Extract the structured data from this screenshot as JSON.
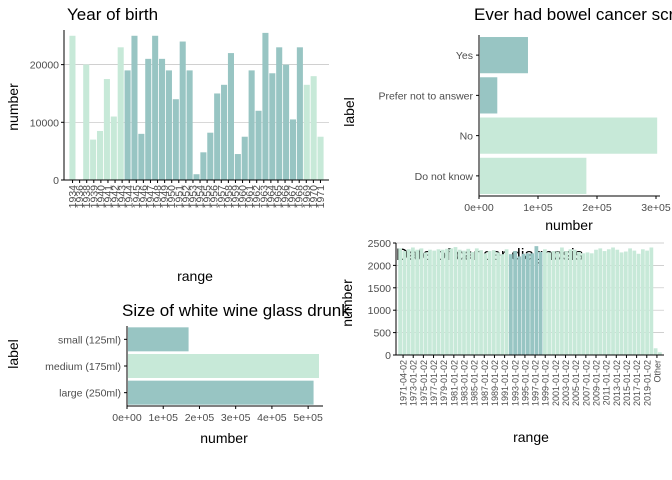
{
  "colors": {
    "dark": "#98c5c3",
    "light": "#c7e9d8",
    "axis": "#000000",
    "grid": "#c0c0c0"
  },
  "chart_data": [
    {
      "id": "year",
      "type": "bar",
      "title": "Year of birth",
      "xlabel": "range",
      "ylabel": "number",
      "ylim": [
        0,
        26000
      ],
      "yticks": [
        0,
        10000,
        20000
      ],
      "grid": "horizontal",
      "x_tick_labels": [
        "1934",
        "1936",
        "1938",
        "1939",
        "1940",
        "1941",
        "1942",
        "1943",
        "1944",
        "1945",
        "1946",
        "1947",
        "1948",
        "1949",
        "1950",
        "1951",
        "1952",
        "1953",
        "1954",
        "1955",
        "1956",
        "1957",
        "1958",
        "1959",
        "1960",
        "1961",
        "1962",
        "1963",
        "1964",
        "1965",
        "1966",
        "1967",
        "1968",
        "1969",
        "1970",
        "1971"
      ],
      "bars": [
        {
          "v": 25000,
          "c": "light"
        },
        {
          "v": 0,
          "c": "light"
        },
        {
          "v": 20000,
          "c": "light"
        },
        {
          "v": 7000,
          "c": "light"
        },
        {
          "v": 8500,
          "c": "light"
        },
        {
          "v": 17500,
          "c": "light"
        },
        {
          "v": 11000,
          "c": "light"
        },
        {
          "v": 23000,
          "c": "light"
        },
        {
          "v": 19000,
          "c": "dark"
        },
        {
          "v": 25000,
          "c": "dark"
        },
        {
          "v": 8000,
          "c": "dark"
        },
        {
          "v": 21000,
          "c": "dark"
        },
        {
          "v": 25000,
          "c": "dark"
        },
        {
          "v": 21000,
          "c": "dark"
        },
        {
          "v": 19000,
          "c": "dark"
        },
        {
          "v": 14000,
          "c": "dark"
        },
        {
          "v": 24000,
          "c": "dark"
        },
        {
          "v": 19000,
          "c": "dark"
        },
        {
          "v": 1000,
          "c": "dark"
        },
        {
          "v": 4800,
          "c": "dark"
        },
        {
          "v": 8200,
          "c": "dark"
        },
        {
          "v": 15000,
          "c": "dark"
        },
        {
          "v": 16500,
          "c": "dark"
        },
        {
          "v": 22000,
          "c": "dark"
        },
        {
          "v": 4500,
          "c": "dark"
        },
        {
          "v": 7500,
          "c": "dark"
        },
        {
          "v": 19000,
          "c": "dark"
        },
        {
          "v": 12000,
          "c": "dark"
        },
        {
          "v": 25500,
          "c": "dark"
        },
        {
          "v": 18500,
          "c": "dark"
        },
        {
          "v": 23000,
          "c": "dark"
        },
        {
          "v": 20000,
          "c": "dark"
        },
        {
          "v": 10500,
          "c": "dark"
        },
        {
          "v": 23000,
          "c": "dark"
        },
        {
          "v": 16500,
          "c": "light"
        },
        {
          "v": 18000,
          "c": "light"
        },
        {
          "v": 7500,
          "c": "light"
        }
      ]
    },
    {
      "id": "bowel",
      "type": "bar",
      "orientation": "horizontal",
      "title": "Ever had bowel cancer screening",
      "xlabel": "number",
      "ylabel": "label",
      "xlim": [
        0,
        300000
      ],
      "xticks": [
        0,
        100000,
        200000,
        300000
      ],
      "xtick_labels": [
        "0e+00",
        "1e+05",
        "2e+05",
        "3e+05"
      ],
      "categories": [
        "Yes",
        "Prefer not to answer",
        "No",
        "Do not know"
      ],
      "values": [
        83000,
        31000,
        302000,
        182000
      ],
      "bar_colors": [
        "dark",
        "dark",
        "light",
        "light"
      ]
    },
    {
      "id": "wine",
      "type": "bar",
      "orientation": "horizontal",
      "title": "Size of white wine glass drunk",
      "xlabel": "number",
      "ylabel": "label",
      "xlim": [
        0,
        530000
      ],
      "xticks": [
        0,
        100000,
        200000,
        300000,
        400000,
        500000
      ],
      "xtick_labels": [
        "0e+00",
        "1e+05",
        "2e+05",
        "3e+05",
        "4e+05",
        "5e+05"
      ],
      "categories": [
        "small (125ml)",
        "medium (175ml)",
        "large (250ml)"
      ],
      "values": [
        170000,
        530000,
        515000
      ],
      "bar_colors": [
        "dark",
        "light",
        "dark"
      ]
    },
    {
      "id": "diag",
      "type": "bar",
      "title": "Date of cancer diagnosis",
      "xlabel": "range",
      "ylabel": "number",
      "ylim": [
        0,
        2500
      ],
      "yticks": [
        0,
        500,
        1000,
        1500,
        2000,
        2500
      ],
      "grid": "horizontal",
      "x_tick_labels": [
        "1971-04-02",
        "1973-01-02",
        "1975-01-02",
        "1977-01-02",
        "1979-01-02",
        "1981-01-02",
        "1983-01-02",
        "1985-01-02",
        "1987-01-02",
        "1989-01-02",
        "1991-01-02",
        "1993-01-02",
        "1995-01-02",
        "1997-01-02",
        "1999-01-02",
        "2001-01-02",
        "2003-01-02",
        "2005-01-02",
        "2007-01-02",
        "2009-01-02",
        "2011-01-02",
        "2013-01-02",
        "2015-01-02",
        "2017-01-02",
        "2019-01-02",
        "Other"
      ],
      "bars": [
        {
          "v": 2380,
          "c": "light"
        },
        {
          "v": 2320,
          "c": "light"
        },
        {
          "v": 2360,
          "c": "light"
        },
        {
          "v": 2400,
          "c": "light"
        },
        {
          "v": 2350,
          "c": "light"
        },
        {
          "v": 2380,
          "c": "light"
        },
        {
          "v": 2290,
          "c": "light"
        },
        {
          "v": 2350,
          "c": "light"
        },
        {
          "v": 2330,
          "c": "light"
        },
        {
          "v": 2360,
          "c": "light"
        },
        {
          "v": 2350,
          "c": "light"
        },
        {
          "v": 2370,
          "c": "light"
        },
        {
          "v": 2380,
          "c": "light"
        },
        {
          "v": 2410,
          "c": "light"
        },
        {
          "v": 2350,
          "c": "light"
        },
        {
          "v": 2330,
          "c": "light"
        },
        {
          "v": 2370,
          "c": "light"
        },
        {
          "v": 2300,
          "c": "light"
        },
        {
          "v": 2380,
          "c": "light"
        },
        {
          "v": 2340,
          "c": "light"
        },
        {
          "v": 2270,
          "c": "light"
        },
        {
          "v": 2320,
          "c": "light"
        },
        {
          "v": 2340,
          "c": "light"
        },
        {
          "v": 2290,
          "c": "light"
        },
        {
          "v": 2250,
          "c": "light"
        },
        {
          "v": 2360,
          "c": "light"
        },
        {
          "v": 2250,
          "c": "dark"
        },
        {
          "v": 2320,
          "c": "dark"
        },
        {
          "v": 2200,
          "c": "dark"
        },
        {
          "v": 2260,
          "c": "dark"
        },
        {
          "v": 2270,
          "c": "dark"
        },
        {
          "v": 2270,
          "c": "dark"
        },
        {
          "v": 2430,
          "c": "dark"
        },
        {
          "v": 2300,
          "c": "dark"
        },
        {
          "v": 2360,
          "c": "light"
        },
        {
          "v": 2290,
          "c": "light"
        },
        {
          "v": 2320,
          "c": "light"
        },
        {
          "v": 2310,
          "c": "light"
        },
        {
          "v": 2400,
          "c": "light"
        },
        {
          "v": 2320,
          "c": "light"
        },
        {
          "v": 2360,
          "c": "light"
        },
        {
          "v": 2350,
          "c": "light"
        },
        {
          "v": 2300,
          "c": "light"
        },
        {
          "v": 2270,
          "c": "light"
        },
        {
          "v": 2290,
          "c": "light"
        },
        {
          "v": 2270,
          "c": "light"
        },
        {
          "v": 2350,
          "c": "light"
        },
        {
          "v": 2380,
          "c": "light"
        },
        {
          "v": 2320,
          "c": "light"
        },
        {
          "v": 2360,
          "c": "light"
        },
        {
          "v": 2400,
          "c": "light"
        },
        {
          "v": 2350,
          "c": "light"
        },
        {
          "v": 2290,
          "c": "light"
        },
        {
          "v": 2310,
          "c": "light"
        },
        {
          "v": 2380,
          "c": "light"
        },
        {
          "v": 2330,
          "c": "light"
        },
        {
          "v": 2260,
          "c": "light"
        },
        {
          "v": 2360,
          "c": "light"
        },
        {
          "v": 2330,
          "c": "light"
        },
        {
          "v": 2400,
          "c": "light"
        },
        {
          "v": 150,
          "c": "light"
        },
        {
          "v": 60,
          "c": "light"
        }
      ]
    }
  ]
}
